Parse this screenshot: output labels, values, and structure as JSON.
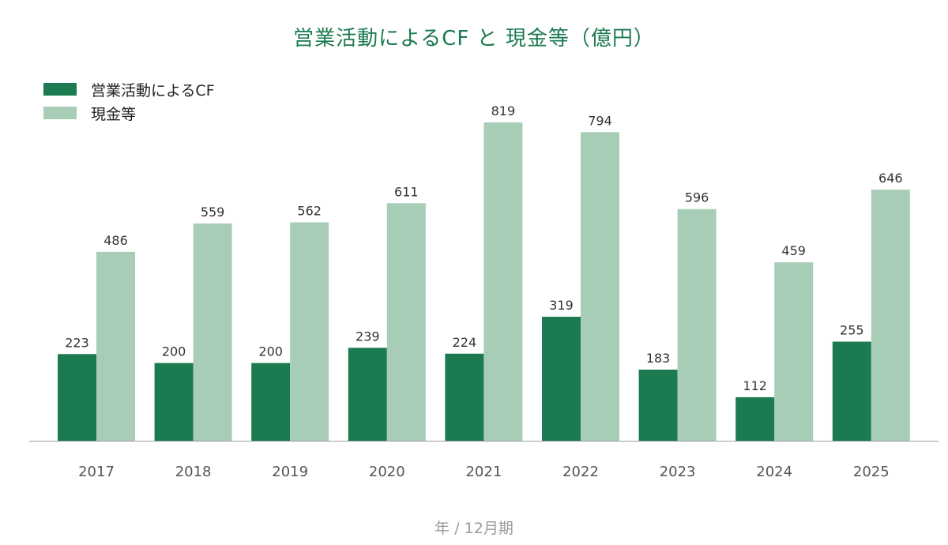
{
  "chart_data": {
    "type": "bar",
    "title": "営業活動によるCF と 現金等（億円）",
    "xlabel": "年 / 12月期",
    "ylabel": "",
    "ylim": [
      0,
      880
    ],
    "grid": false,
    "legend_position": "top-left",
    "categories": [
      "2017",
      "2018",
      "2019",
      "2020",
      "2021",
      "2022",
      "2023",
      "2024",
      "2025"
    ],
    "series": [
      {
        "name": "営業活動によるCF",
        "color": "#1b7a4f",
        "values": [
          223,
          200,
          200,
          239,
          224,
          319,
          183,
          112,
          255
        ]
      },
      {
        "name": "現金等",
        "color": "#a8cdb6",
        "values": [
          486,
          559,
          562,
          611,
          819,
          794,
          596,
          459,
          646
        ]
      }
    ]
  }
}
